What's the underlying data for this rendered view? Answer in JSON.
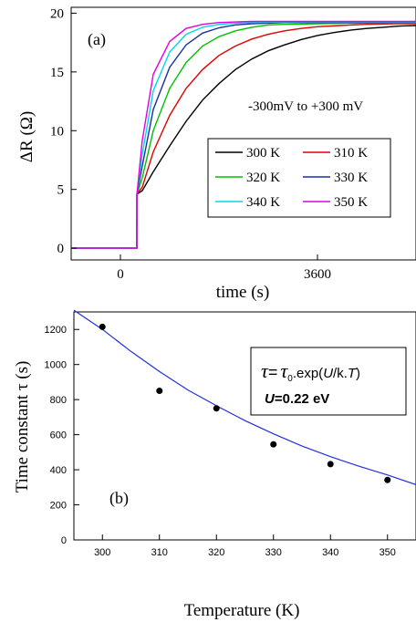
{
  "chart_data": [
    {
      "panel_label": "(a)",
      "type": "line",
      "xlabel": "time (s)",
      "ylabel": "ΔR (Ω)",
      "xlim": [
        -900,
        5400
      ],
      "ylim": [
        -1,
        20.5
      ],
      "x_ticks": [
        0,
        3600
      ],
      "y_ticks": [
        0,
        5,
        10,
        15,
        20
      ],
      "annotation": "-300mV to +300 mV",
      "legend_position": "lower-right",
      "series": [
        {
          "name": "300 K",
          "color": "#000000",
          "x": [
            -900,
            300,
            301,
            400,
            600,
            900,
            1200,
            1500,
            1800,
            2100,
            2400,
            2700,
            3000,
            3300,
            3600,
            3900,
            4200,
            4500,
            4800,
            5100,
            5400
          ],
          "y": [
            0,
            0,
            4.6,
            4.9,
            6.5,
            8.7,
            10.8,
            12.6,
            14.0,
            15.2,
            16.1,
            16.8,
            17.3,
            17.75,
            18.1,
            18.35,
            18.55,
            18.7,
            18.8,
            18.9,
            18.95
          ]
        },
        {
          "name": "310 K",
          "color": "#e00000",
          "x": [
            -900,
            300,
            301,
            400,
            600,
            900,
            1200,
            1500,
            1800,
            2100,
            2400,
            2700,
            3000,
            3300,
            3600,
            4000,
            4500,
            5000,
            5400
          ],
          "y": [
            0,
            0,
            4.6,
            5.2,
            8.2,
            11.3,
            13.6,
            15.2,
            16.4,
            17.2,
            17.8,
            18.2,
            18.5,
            18.7,
            18.85,
            18.95,
            19.05,
            19.1,
            19.1
          ]
        },
        {
          "name": "320 K",
          "color": "#00c000",
          "x": [
            -900,
            300,
            301,
            400,
            600,
            900,
            1200,
            1500,
            1800,
            2100,
            2400,
            2700,
            3000,
            3600,
            4200,
            4800,
            5400
          ],
          "y": [
            0,
            0,
            4.6,
            6.0,
            10.0,
            13.6,
            15.8,
            17.2,
            18.0,
            18.5,
            18.8,
            19.0,
            19.05,
            19.1,
            19.15,
            19.15,
            19.15
          ]
        },
        {
          "name": "330 K",
          "color": "#1c2fa0",
          "x": [
            -900,
            300,
            301,
            400,
            600,
            900,
            1200,
            1500,
            1800,
            2100,
            2400,
            2700,
            3000,
            3600,
            4200,
            4800,
            5400
          ],
          "y": [
            0,
            0,
            4.6,
            7.0,
            11.8,
            15.4,
            17.3,
            18.3,
            18.75,
            19.0,
            19.1,
            19.15,
            19.2,
            19.2,
            19.2,
            19.2,
            19.2
          ]
        },
        {
          "name": "340 K",
          "color": "#00d8e8",
          "x": [
            -900,
            300,
            301,
            400,
            600,
            900,
            1200,
            1500,
            1800,
            2100,
            2400,
            3000,
            3600,
            4200,
            4800,
            5400
          ],
          "y": [
            0,
            0,
            4.6,
            8.0,
            13.4,
            16.7,
            18.2,
            18.8,
            19.05,
            19.15,
            19.2,
            19.25,
            19.25,
            19.25,
            19.25,
            19.25
          ]
        },
        {
          "name": "350 K",
          "color": "#e000e0",
          "x": [
            -900,
            300,
            301,
            400,
            600,
            900,
            1200,
            1500,
            1800,
            2100,
            2400,
            3000,
            3600,
            4200,
            4800,
            5400
          ],
          "y": [
            0,
            0,
            4.6,
            9.2,
            14.8,
            17.6,
            18.7,
            19.05,
            19.2,
            19.25,
            19.3,
            19.3,
            19.3,
            19.3,
            19.3,
            19.3
          ]
        }
      ]
    },
    {
      "panel_label": "(b)",
      "type": "scatter",
      "xlabel": "Temperature (K)",
      "ylabel": "Time constant τ (s)",
      "xlim": [
        295,
        355
      ],
      "ylim": [
        0,
        1300
      ],
      "x_ticks": [
        300,
        310,
        320,
        330,
        340,
        350
      ],
      "y_ticks": [
        0,
        200,
        400,
        600,
        800,
        1000,
        1200
      ],
      "formula": {
        "tau": "τ",
        "eq": "=",
        "tau0": "τ",
        "sub": "0",
        "rest": ".exp(",
        "U": "U",
        "slash_k_T": "/k.",
        "T": "T",
        "close": ")"
      },
      "u_label": "U",
      "u_value": "=0.22 eV",
      "series": [
        {
          "type": "scatter",
          "color": "#000000",
          "x": [
            300,
            310,
            320,
            330,
            340,
            350
          ],
          "y": [
            1215,
            850,
            750,
            545,
            432,
            342
          ]
        },
        {
          "type": "line",
          "color": "#2030e0",
          "x": [
            295,
            300,
            305,
            310,
            315,
            320,
            325,
            330,
            335,
            340,
            345,
            350,
            355
          ],
          "y": [
            1310,
            1200,
            1075,
            960,
            855,
            765,
            680,
            605,
            535,
            475,
            420,
            370,
            315
          ]
        }
      ]
    }
  ]
}
